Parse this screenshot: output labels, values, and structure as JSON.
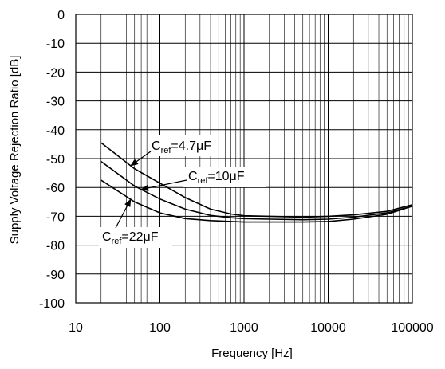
{
  "chart_data": {
    "type": "line",
    "title": "",
    "xlabel": "Frequency [Hz]",
    "ylabel": "Supply Voltage Rejection Ratio [dB]",
    "xscale": "log",
    "xlim": [
      10,
      100000
    ],
    "ylim": [
      -100,
      0
    ],
    "x_ticks": [
      "10",
      "100",
      "1000",
      "10000",
      "100000"
    ],
    "y_ticks": [
      "0",
      "-10",
      "-20",
      "-30",
      "-40",
      "-50",
      "-60",
      "-70",
      "-80",
      "-90",
      "-100"
    ],
    "grid": true,
    "legend": "none",
    "series": [
      {
        "name": "Cref=4.7μF",
        "x": [
          20,
          50,
          100,
          200,
          400,
          700,
          1000,
          2000,
          5000,
          10000,
          20000,
          50000,
          100000
        ],
        "y": [
          -44.5,
          -53.5,
          -58.5,
          -63.5,
          -67.5,
          -69.2,
          -69.8,
          -70.0,
          -70.3,
          -70.0,
          -69.5,
          -68.3,
          -66.0
        ]
      },
      {
        "name": "Cref=10μF",
        "x": [
          20,
          50,
          100,
          200,
          400,
          700,
          1000,
          2000,
          5000,
          10000,
          20000,
          50000,
          100000
        ],
        "y": [
          -51.0,
          -59.5,
          -64.0,
          -67.5,
          -69.7,
          -70.5,
          -70.8,
          -71.0,
          -71.2,
          -71.0,
          -70.3,
          -68.8,
          -66.5
        ]
      },
      {
        "name": "Cref=22μF",
        "x": [
          20,
          50,
          100,
          200,
          400,
          700,
          1000,
          2000,
          5000,
          10000,
          20000,
          50000,
          100000
        ],
        "y": [
          -57.5,
          -65.0,
          -68.8,
          -70.8,
          -71.5,
          -71.8,
          -72.0,
          -72.0,
          -72.0,
          -71.8,
          -71.0,
          -69.3,
          -66.5
        ]
      }
    ],
    "annotations": [
      {
        "series": 0,
        "main": "C",
        "sub": "ref",
        "suffix": "=4.7μF"
      },
      {
        "series": 1,
        "main": "C",
        "sub": "ref",
        "suffix": "=10μF"
      },
      {
        "series": 2,
        "main": "C",
        "sub": "ref",
        "suffix": "=22μF"
      }
    ]
  }
}
